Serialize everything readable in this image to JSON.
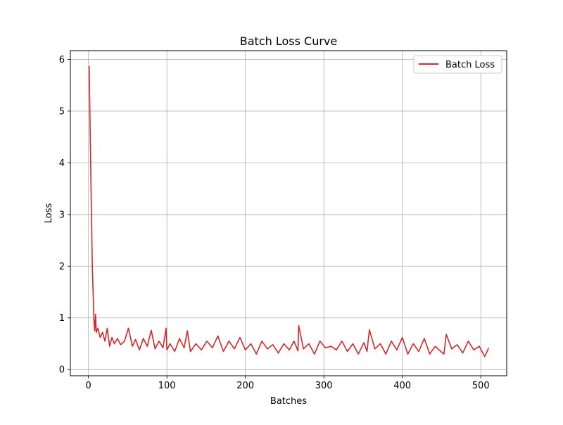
{
  "chart_data": {
    "type": "line",
    "title": "Batch Loss Curve",
    "xlabel": "Batches",
    "ylabel": "Loss",
    "xlim": [
      -23,
      533
    ],
    "ylim": [
      -0.12,
      6.17
    ],
    "xticks": [
      0,
      100,
      200,
      300,
      400,
      500
    ],
    "yticks": [
      0,
      1,
      2,
      3,
      4,
      5,
      6
    ],
    "grid": true,
    "legend_position": "top-right",
    "series": [
      {
        "name": "Batch Loss",
        "color": "#d62728",
        "x": [
          1,
          3,
          5,
          7,
          8,
          9,
          10,
          12,
          15,
          18,
          21,
          24,
          27,
          30,
          33,
          37,
          41,
          46,
          51,
          56,
          60,
          65,
          70,
          75,
          80,
          85,
          90,
          95,
          99,
          100,
          104,
          110,
          116,
          122,
          126,
          130,
          137,
          144,
          151,
          158,
          165,
          172,
          179,
          186,
          193,
          200,
          207,
          214,
          221,
          228,
          235,
          242,
          249,
          256,
          262,
          267,
          268,
          274,
          281,
          288,
          295,
          302,
          309,
          316,
          323,
          330,
          337,
          344,
          351,
          355,
          358,
          365,
          372,
          379,
          386,
          393,
          400,
          407,
          414,
          421,
          428,
          435,
          442,
          449,
          453,
          456,
          463,
          470,
          477,
          484,
          491,
          498,
          505,
          510
        ],
        "values": [
          5.87,
          3.8,
          2.0,
          0.95,
          0.75,
          1.07,
          0.72,
          0.8,
          0.62,
          0.72,
          0.55,
          0.8,
          0.45,
          0.62,
          0.5,
          0.6,
          0.48,
          0.55,
          0.8,
          0.45,
          0.58,
          0.38,
          0.6,
          0.45,
          0.76,
          0.4,
          0.55,
          0.42,
          0.8,
          0.38,
          0.5,
          0.35,
          0.6,
          0.42,
          0.75,
          0.35,
          0.5,
          0.38,
          0.55,
          0.42,
          0.65,
          0.35,
          0.55,
          0.4,
          0.62,
          0.38,
          0.5,
          0.3,
          0.55,
          0.4,
          0.48,
          0.32,
          0.5,
          0.38,
          0.55,
          0.36,
          0.85,
          0.4,
          0.5,
          0.3,
          0.55,
          0.42,
          0.45,
          0.38,
          0.55,
          0.35,
          0.5,
          0.3,
          0.52,
          0.35,
          0.77,
          0.4,
          0.5,
          0.3,
          0.55,
          0.38,
          0.62,
          0.3,
          0.5,
          0.35,
          0.6,
          0.3,
          0.45,
          0.35,
          0.3,
          0.68,
          0.4,
          0.48,
          0.32,
          0.55,
          0.38,
          0.45,
          0.25,
          0.42
        ]
      }
    ]
  }
}
